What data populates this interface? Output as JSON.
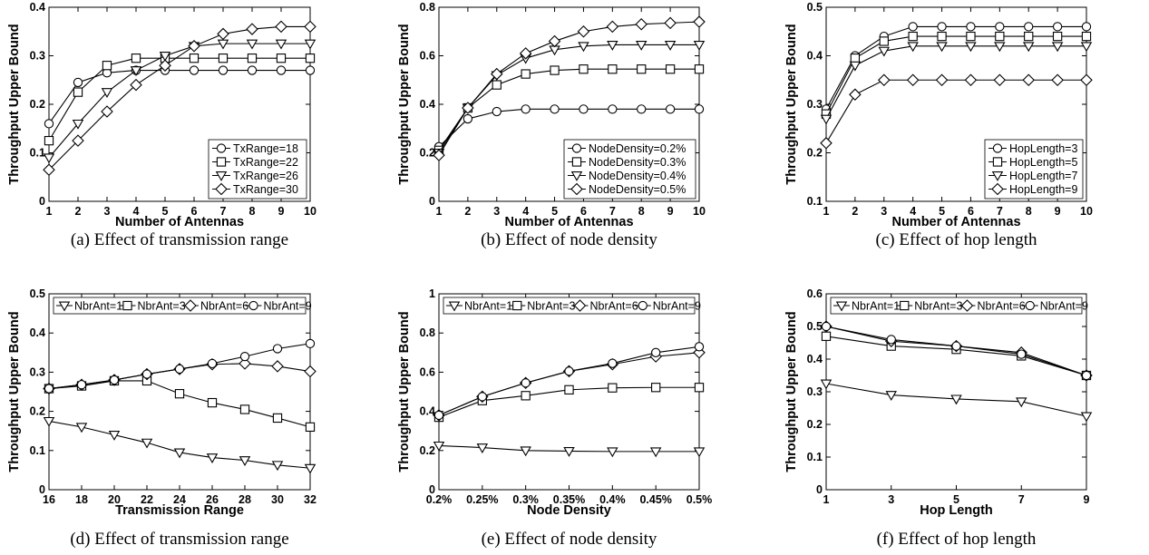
{
  "chart_data": [
    {
      "id": "a",
      "type": "line",
      "caption": "(a) Effect of transmission range",
      "xlabel": "Number of Antennas",
      "ylabel": "Throughput Upper Bound",
      "x": [
        1,
        2,
        3,
        4,
        5,
        6,
        7,
        8,
        9,
        10
      ],
      "xticks": [
        1,
        2,
        3,
        4,
        5,
        6,
        7,
        8,
        9,
        10
      ],
      "xlim": [
        1,
        10
      ],
      "ylim": [
        0,
        0.4
      ],
      "yticks": [
        0,
        0.1,
        0.2,
        0.3,
        0.4
      ],
      "legend_position": "bottom-right",
      "series": [
        {
          "name": "TxRange=18",
          "marker": "circle",
          "values": [
            0.16,
            0.245,
            0.265,
            0.27,
            0.27,
            0.27,
            0.27,
            0.27,
            0.27,
            0.27
          ]
        },
        {
          "name": "TxRange=22",
          "marker": "square",
          "values": [
            0.125,
            0.225,
            0.28,
            0.295,
            0.295,
            0.295,
            0.295,
            0.295,
            0.295,
            0.295
          ]
        },
        {
          "name": "TxRange=26",
          "marker": "triangle-down",
          "values": [
            0.09,
            0.16,
            0.225,
            0.27,
            0.3,
            0.32,
            0.325,
            0.325,
            0.325,
            0.325
          ]
        },
        {
          "name": "TxRange=30",
          "marker": "diamond",
          "values": [
            0.065,
            0.125,
            0.185,
            0.24,
            0.28,
            0.32,
            0.345,
            0.355,
            0.36,
            0.36
          ]
        }
      ]
    },
    {
      "id": "b",
      "type": "line",
      "caption": "(b) Effect of node density",
      "xlabel": "Number of Antennas",
      "ylabel": "Throughput Upper Bound",
      "x": [
        1,
        2,
        3,
        4,
        5,
        6,
        7,
        8,
        9,
        10
      ],
      "xticks": [
        1,
        2,
        3,
        4,
        5,
        6,
        7,
        8,
        9,
        10
      ],
      "xlim": [
        1,
        10
      ],
      "ylim": [
        0,
        0.8
      ],
      "yticks": [
        0,
        0.2,
        0.4,
        0.6,
        0.8
      ],
      "legend_position": "bottom-right",
      "series": [
        {
          "name": "NodeDensity=0.2%",
          "marker": "circle",
          "values": [
            0.225,
            0.34,
            0.37,
            0.38,
            0.38,
            0.38,
            0.38,
            0.38,
            0.38,
            0.38
          ]
        },
        {
          "name": "NodeDensity=0.3%",
          "marker": "square",
          "values": [
            0.21,
            0.385,
            0.48,
            0.525,
            0.54,
            0.545,
            0.545,
            0.545,
            0.545,
            0.545
          ]
        },
        {
          "name": "NodeDensity=0.4%",
          "marker": "triangle-down",
          "values": [
            0.2,
            0.385,
            0.52,
            0.59,
            0.625,
            0.64,
            0.645,
            0.645,
            0.645,
            0.645
          ]
        },
        {
          "name": "NodeDensity=0.5%",
          "marker": "diamond",
          "values": [
            0.19,
            0.385,
            0.525,
            0.61,
            0.66,
            0.7,
            0.72,
            0.73,
            0.735,
            0.74
          ]
        }
      ]
    },
    {
      "id": "c",
      "type": "line",
      "caption": "(c) Effect of hop length",
      "xlabel": "Number of Antennas",
      "ylabel": "Throughput Upper Bound",
      "x": [
        1,
        2,
        3,
        4,
        5,
        6,
        7,
        8,
        9,
        10
      ],
      "xticks": [
        1,
        2,
        3,
        4,
        5,
        6,
        7,
        8,
        9,
        10
      ],
      "xlim": [
        1,
        10
      ],
      "ylim": [
        0.1,
        0.5
      ],
      "yticks": [
        0.1,
        0.2,
        0.3,
        0.4,
        0.5
      ],
      "legend_position": "bottom-right",
      "series": [
        {
          "name": "HopLength=3",
          "marker": "circle",
          "values": [
            0.29,
            0.4,
            0.44,
            0.46,
            0.46,
            0.46,
            0.46,
            0.46,
            0.46,
            0.46
          ]
        },
        {
          "name": "HopLength=5",
          "marker": "square",
          "values": [
            0.28,
            0.395,
            0.43,
            0.44,
            0.44,
            0.44,
            0.44,
            0.44,
            0.44,
            0.44
          ]
        },
        {
          "name": "HopLength=7",
          "marker": "triangle-down",
          "values": [
            0.27,
            0.38,
            0.41,
            0.42,
            0.42,
            0.42,
            0.42,
            0.42,
            0.42,
            0.42
          ]
        },
        {
          "name": "HopLength=9",
          "marker": "diamond",
          "values": [
            0.22,
            0.32,
            0.35,
            0.35,
            0.35,
            0.35,
            0.35,
            0.35,
            0.35,
            0.35
          ]
        }
      ]
    },
    {
      "id": "d",
      "type": "line",
      "caption": "(d) Effect of transmission range",
      "xlabel": "Transmission Range",
      "ylabel": "Throughput Upper Bound",
      "x": [
        16,
        18,
        20,
        22,
        24,
        26,
        28,
        30,
        32
      ],
      "xticks": [
        16,
        18,
        20,
        22,
        24,
        26,
        28,
        30,
        32
      ],
      "xlim": [
        16,
        32
      ],
      "ylim": [
        0,
        0.5
      ],
      "yticks": [
        0,
        0.1,
        0.2,
        0.3,
        0.4,
        0.5
      ],
      "legend_position": "top",
      "series": [
        {
          "name": "NbrAnt=1",
          "marker": "triangle-down",
          "values": [
            0.175,
            0.16,
            0.14,
            0.12,
            0.095,
            0.082,
            0.075,
            0.063,
            0.055
          ]
        },
        {
          "name": "NbrAnt=3",
          "marker": "square",
          "values": [
            0.258,
            0.265,
            0.278,
            0.278,
            0.245,
            0.222,
            0.205,
            0.183,
            0.16
          ]
        },
        {
          "name": "NbrAnt=6",
          "marker": "diamond",
          "values": [
            0.258,
            0.268,
            0.28,
            0.295,
            0.308,
            0.32,
            0.322,
            0.315,
            0.302
          ]
        },
        {
          "name": "NbrAnt=9",
          "marker": "circle",
          "values": [
            0.258,
            0.268,
            0.28,
            0.295,
            0.308,
            0.322,
            0.34,
            0.36,
            0.373
          ]
        }
      ]
    },
    {
      "id": "e",
      "type": "line",
      "caption": "(e) Effect of node density",
      "xlabel": "Node Density",
      "ylabel": "Throughput Upper Bound",
      "x": [
        "0.2%",
        "0.25%",
        "0.3%",
        "0.35%",
        "0.4%",
        "0.45%",
        "0.5%"
      ],
      "xticks": [
        "0.2%",
        "0.25%",
        "0.3%",
        "0.35%",
        "0.4%",
        "0.45%",
        "0.5%"
      ],
      "xlim": [
        0,
        6
      ],
      "ylim": [
        0,
        1
      ],
      "yticks": [
        0,
        0.2,
        0.4,
        0.6,
        0.8,
        1
      ],
      "legend_position": "top",
      "series": [
        {
          "name": "NbrAnt=1",
          "marker": "triangle-down",
          "values": [
            0.225,
            0.215,
            0.2,
            0.197,
            0.195,
            0.195,
            0.195
          ]
        },
        {
          "name": "NbrAnt=3",
          "marker": "square",
          "values": [
            0.37,
            0.455,
            0.48,
            0.51,
            0.52,
            0.522,
            0.522
          ]
        },
        {
          "name": "NbrAnt=6",
          "marker": "diamond",
          "values": [
            0.38,
            0.475,
            0.545,
            0.605,
            0.64,
            0.68,
            0.7
          ]
        },
        {
          "name": "NbrAnt=9",
          "marker": "circle",
          "values": [
            0.38,
            0.475,
            0.545,
            0.605,
            0.645,
            0.7,
            0.73
          ]
        }
      ]
    },
    {
      "id": "f",
      "type": "line",
      "caption": "(f) Effect of hop length",
      "xlabel": "Hop Length",
      "ylabel": "Throughput Upper Bound",
      "x": [
        1,
        3,
        5,
        7,
        9
      ],
      "xticks": [
        1,
        3,
        5,
        7,
        9
      ],
      "xlim": [
        1,
        9
      ],
      "ylim": [
        0,
        0.6
      ],
      "yticks": [
        0,
        0.1,
        0.2,
        0.3,
        0.4,
        0.5,
        0.6
      ],
      "legend_position": "top",
      "series": [
        {
          "name": "NbrAnt=1",
          "marker": "triangle-down",
          "values": [
            0.325,
            0.29,
            0.278,
            0.27,
            0.225
          ]
        },
        {
          "name": "NbrAnt=3",
          "marker": "square",
          "values": [
            0.47,
            0.44,
            0.43,
            0.41,
            0.35
          ]
        },
        {
          "name": "NbrAnt=6",
          "marker": "diamond",
          "values": [
            0.5,
            0.455,
            0.44,
            0.42,
            0.35
          ]
        },
        {
          "name": "NbrAnt=9",
          "marker": "circle",
          "values": [
            0.5,
            0.46,
            0.44,
            0.415,
            0.35
          ]
        }
      ]
    }
  ]
}
